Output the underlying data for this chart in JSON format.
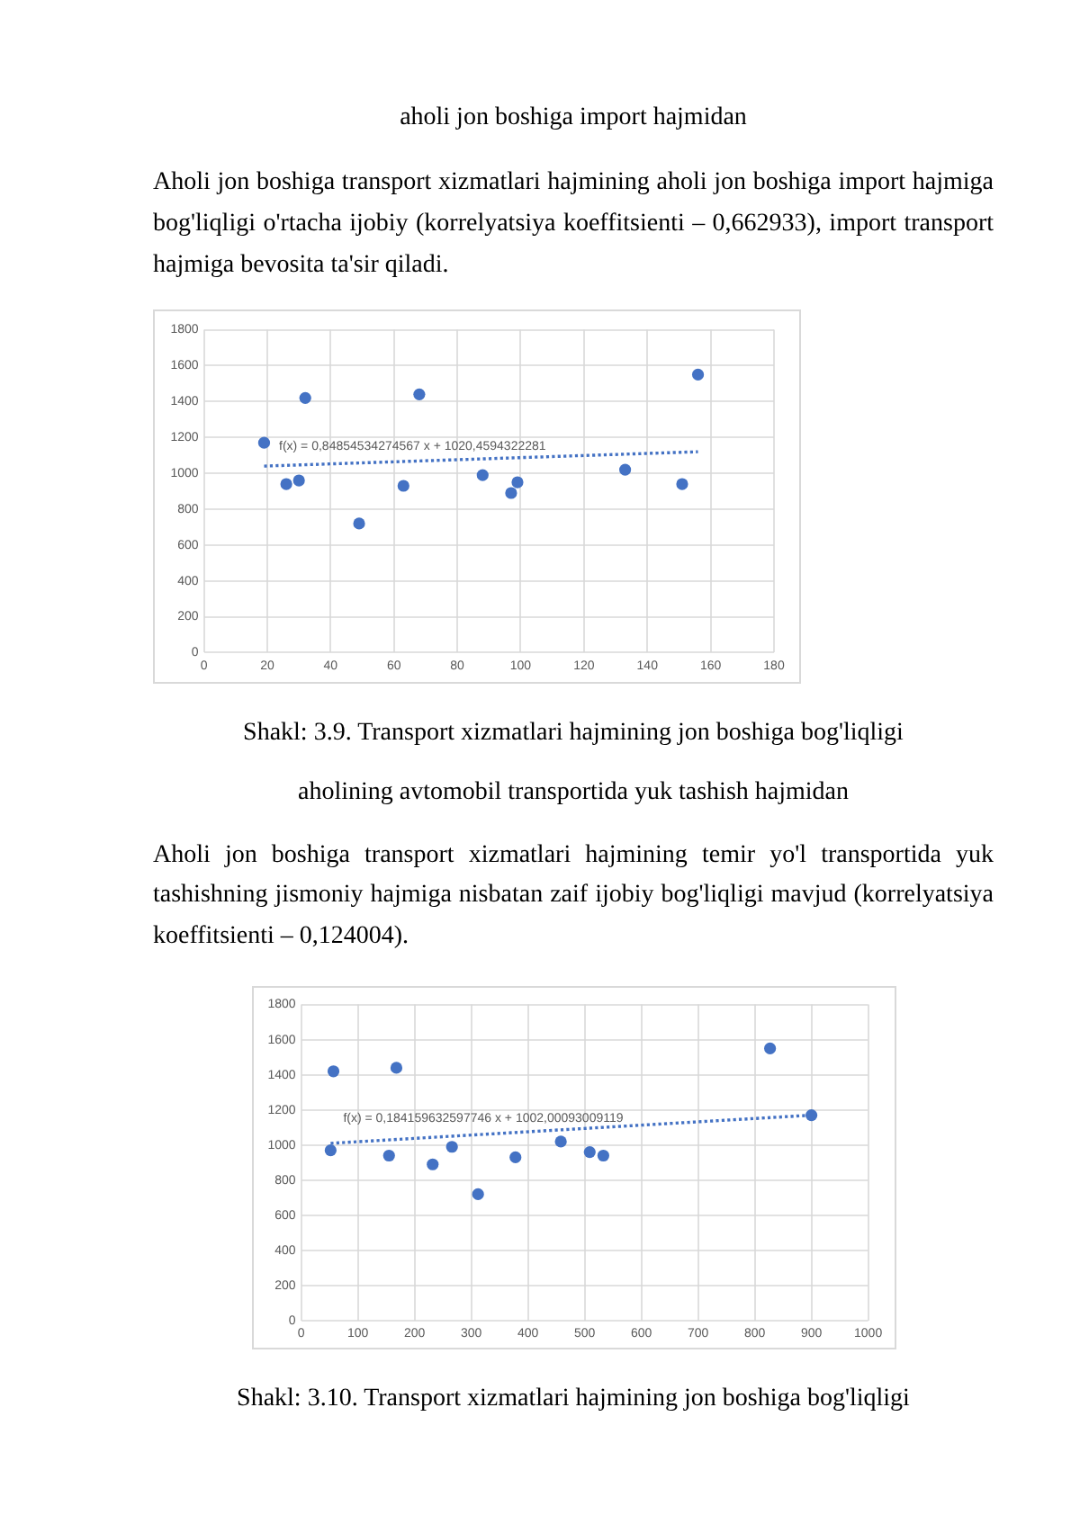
{
  "chart_data": [
    {
      "type": "scatter",
      "title": "Shakl: 3.9. Transport xizmatlari hajmining jon boshiga bog'liqligi",
      "subtitle": "aholining avtomobil transportida yuk tashish hajmidan",
      "annotations": [
        "aholi jon boshiga import hajmidan",
        "Aholi jon boshiga transport xizmatlari hajmining aholi jon boshiga import hajmiga bog'liqligi o'rtacha ijobiy (korrelyatsiya koeffitsienti – 0,662933), import transport hajmiga bevosita ta'sir qiladi.",
        "f(x) = 0,84854534274567 x + 1020,4594322281"
      ],
      "series": [
        {
          "color": "#4472c4",
          "marker": "circle",
          "x": [
            19,
            26,
            30,
            32,
            49,
            63,
            68,
            88,
            97,
            99,
            133,
            151,
            156
          ],
          "values": [
            1170,
            940,
            960,
            1420,
            720,
            930,
            1440,
            990,
            890,
            950,
            1020,
            940,
            1550
          ]
        },
        {
          "type": "line",
          "color": "#4472c4",
          "line_style": "dotted",
          "marker": "none",
          "x": [
            19,
            156
          ],
          "values": [
            1040,
            1120
          ]
        }
      ],
      "xlim": [
        0,
        180
      ],
      "xticks": [
        0,
        20,
        40,
        60,
        80,
        100,
        120,
        140,
        160,
        180
      ],
      "ylim": [
        0,
        1800
      ],
      "yticks": [
        0,
        200,
        400,
        600,
        800,
        1000,
        1200,
        1400,
        1600,
        1800
      ],
      "grid": true,
      "legend": false
    },
    {
      "type": "scatter",
      "title": "Shakl: 3.10. Transport xizmatlari hajmining jon boshiga bog'liqligi",
      "annotations": [
        "Aholi jon boshiga transport xizmatlari hajmining temir yo'l transportida yuk tashishning jismoniy hajmiga nisbatan zaif ijobiy bog'liqligi mavjud (korrelyatsiya koeffitsienti – 0,124004).",
        "f(x) = 0,184159632597746 x + 1002,00093009119"
      ],
      "series": [
        {
          "color": "#4472c4",
          "marker": "circle",
          "x": [
            52,
            57,
            155,
            168,
            232,
            266,
            312,
            378,
            458,
            509,
            533,
            827,
            900
          ],
          "values": [
            970,
            1420,
            940,
            1440,
            890,
            990,
            720,
            930,
            1020,
            960,
            940,
            1550,
            1170
          ]
        },
        {
          "type": "line",
          "color": "#4472c4",
          "line_style": "dotted",
          "marker": "none",
          "x": [
            52,
            900
          ],
          "values": [
            1010,
            1170
          ]
        }
      ],
      "xlim": [
        0,
        1000
      ],
      "xticks": [
        0,
        100,
        200,
        300,
        400,
        500,
        600,
        700,
        800,
        900,
        1000
      ],
      "ylim": [
        0,
        1800
      ],
      "yticks": [
        0,
        200,
        400,
        600,
        800,
        1000,
        1200,
        1400,
        1600,
        1800
      ],
      "grid": true,
      "legend": false
    }
  ]
}
